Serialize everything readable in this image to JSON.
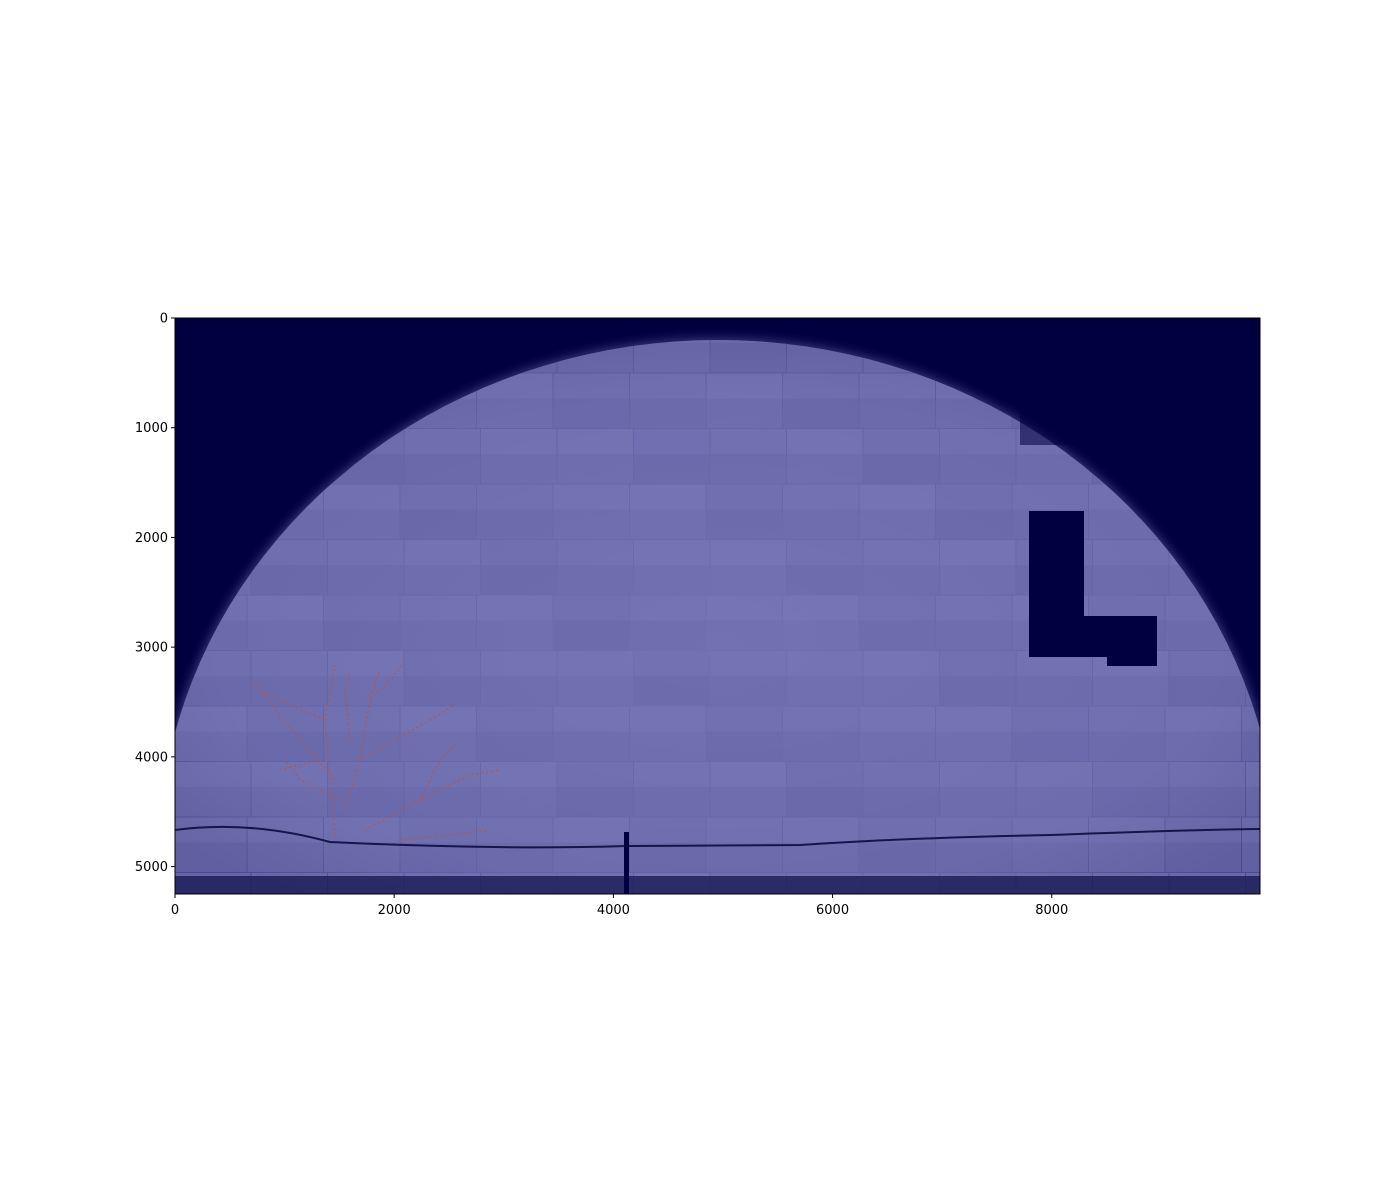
{
  "figure": {
    "type": "image",
    "colors": {
      "background": "#000040",
      "tile_light": "#7676b8",
      "tile_dark": "#4a4a8e",
      "overlay_trace": "#c0503a",
      "axis": "#000000"
    }
  },
  "chart_data": {
    "type": "image",
    "title": "",
    "xlabel": "",
    "ylabel": "",
    "xlim": [
      0,
      9900
    ],
    "ylim": [
      5250,
      0
    ],
    "x_ticks": [
      0,
      2000,
      4000,
      6000,
      8000
    ],
    "y_ticks": [
      0,
      1000,
      2000,
      3000,
      4000,
      5000
    ],
    "x_tick_labels": [
      "0",
      "2000",
      "4000",
      "6000",
      "8000"
    ],
    "y_tick_labels": [
      "0",
      "1000",
      "2000",
      "3000",
      "4000",
      "5000"
    ],
    "grid": false
  }
}
